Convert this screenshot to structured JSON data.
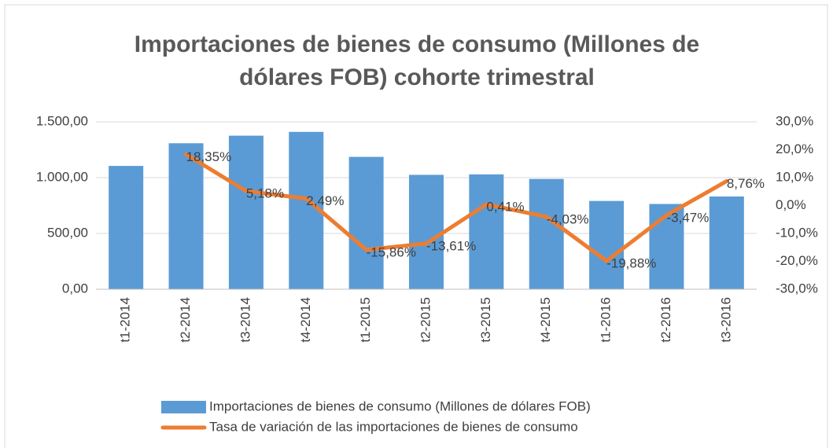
{
  "chart_data": {
    "type": "bar_line",
    "title": "Importaciones de bienes de consumo (Millones de dólares FOB) cohorte trimestral",
    "categories": [
      "t1-2014",
      "t2-2014",
      "t3-2014",
      "t4-2014",
      "t1-2015",
      "t2-2015",
      "t3-2015",
      "t4-2015",
      "t1-2016",
      "t2-2016",
      "t3-2016"
    ],
    "series": [
      {
        "name": "Importaciones de bienes de consumo (Millones de dólares FOB)",
        "type": "bar",
        "color": "#5b9bd5",
        "values": [
          1105,
          1308,
          1376,
          1410,
          1186,
          1025,
          1029,
          988,
          791,
          764,
          831
        ]
      },
      {
        "name": "Tasa de variación de las importaciones de bienes de consumo",
        "type": "line",
        "axis": "y2",
        "color": "#ed7d31",
        "values": [
          null,
          18.35,
          5.18,
          2.49,
          -15.86,
          -13.61,
          0.41,
          -4.03,
          -19.88,
          -3.47,
          8.76
        ],
        "value_labels": [
          null,
          "18,35%",
          "5,18%",
          "2,49%",
          "-15,86%",
          "-13,61%",
          "0,41%",
          "-4,03%",
          "-19,88%",
          "-3,47%",
          "8,76%"
        ]
      }
    ],
    "ylim": [
      0,
      1500
    ],
    "yticks": [
      {
        "value": 0,
        "label": "0,00"
      },
      {
        "value": 500,
        "label": "500,00"
      },
      {
        "value": 1000,
        "label": "1.000,00"
      },
      {
        "value": 1500,
        "label": "1.500,00"
      }
    ],
    "y2lim": [
      -30,
      30
    ],
    "y2ticks": [
      {
        "value": -30,
        "label": "-30,0%"
      },
      {
        "value": -20,
        "label": "-20,0%"
      },
      {
        "value": -10,
        "label": "-10,0%"
      },
      {
        "value": 0,
        "label": "0,0%"
      },
      {
        "value": 10,
        "label": "10,0%"
      },
      {
        "value": 20,
        "label": "20,0%"
      },
      {
        "value": 30,
        "label": "30,0%"
      }
    ],
    "grid": true,
    "legend": "bottom"
  }
}
